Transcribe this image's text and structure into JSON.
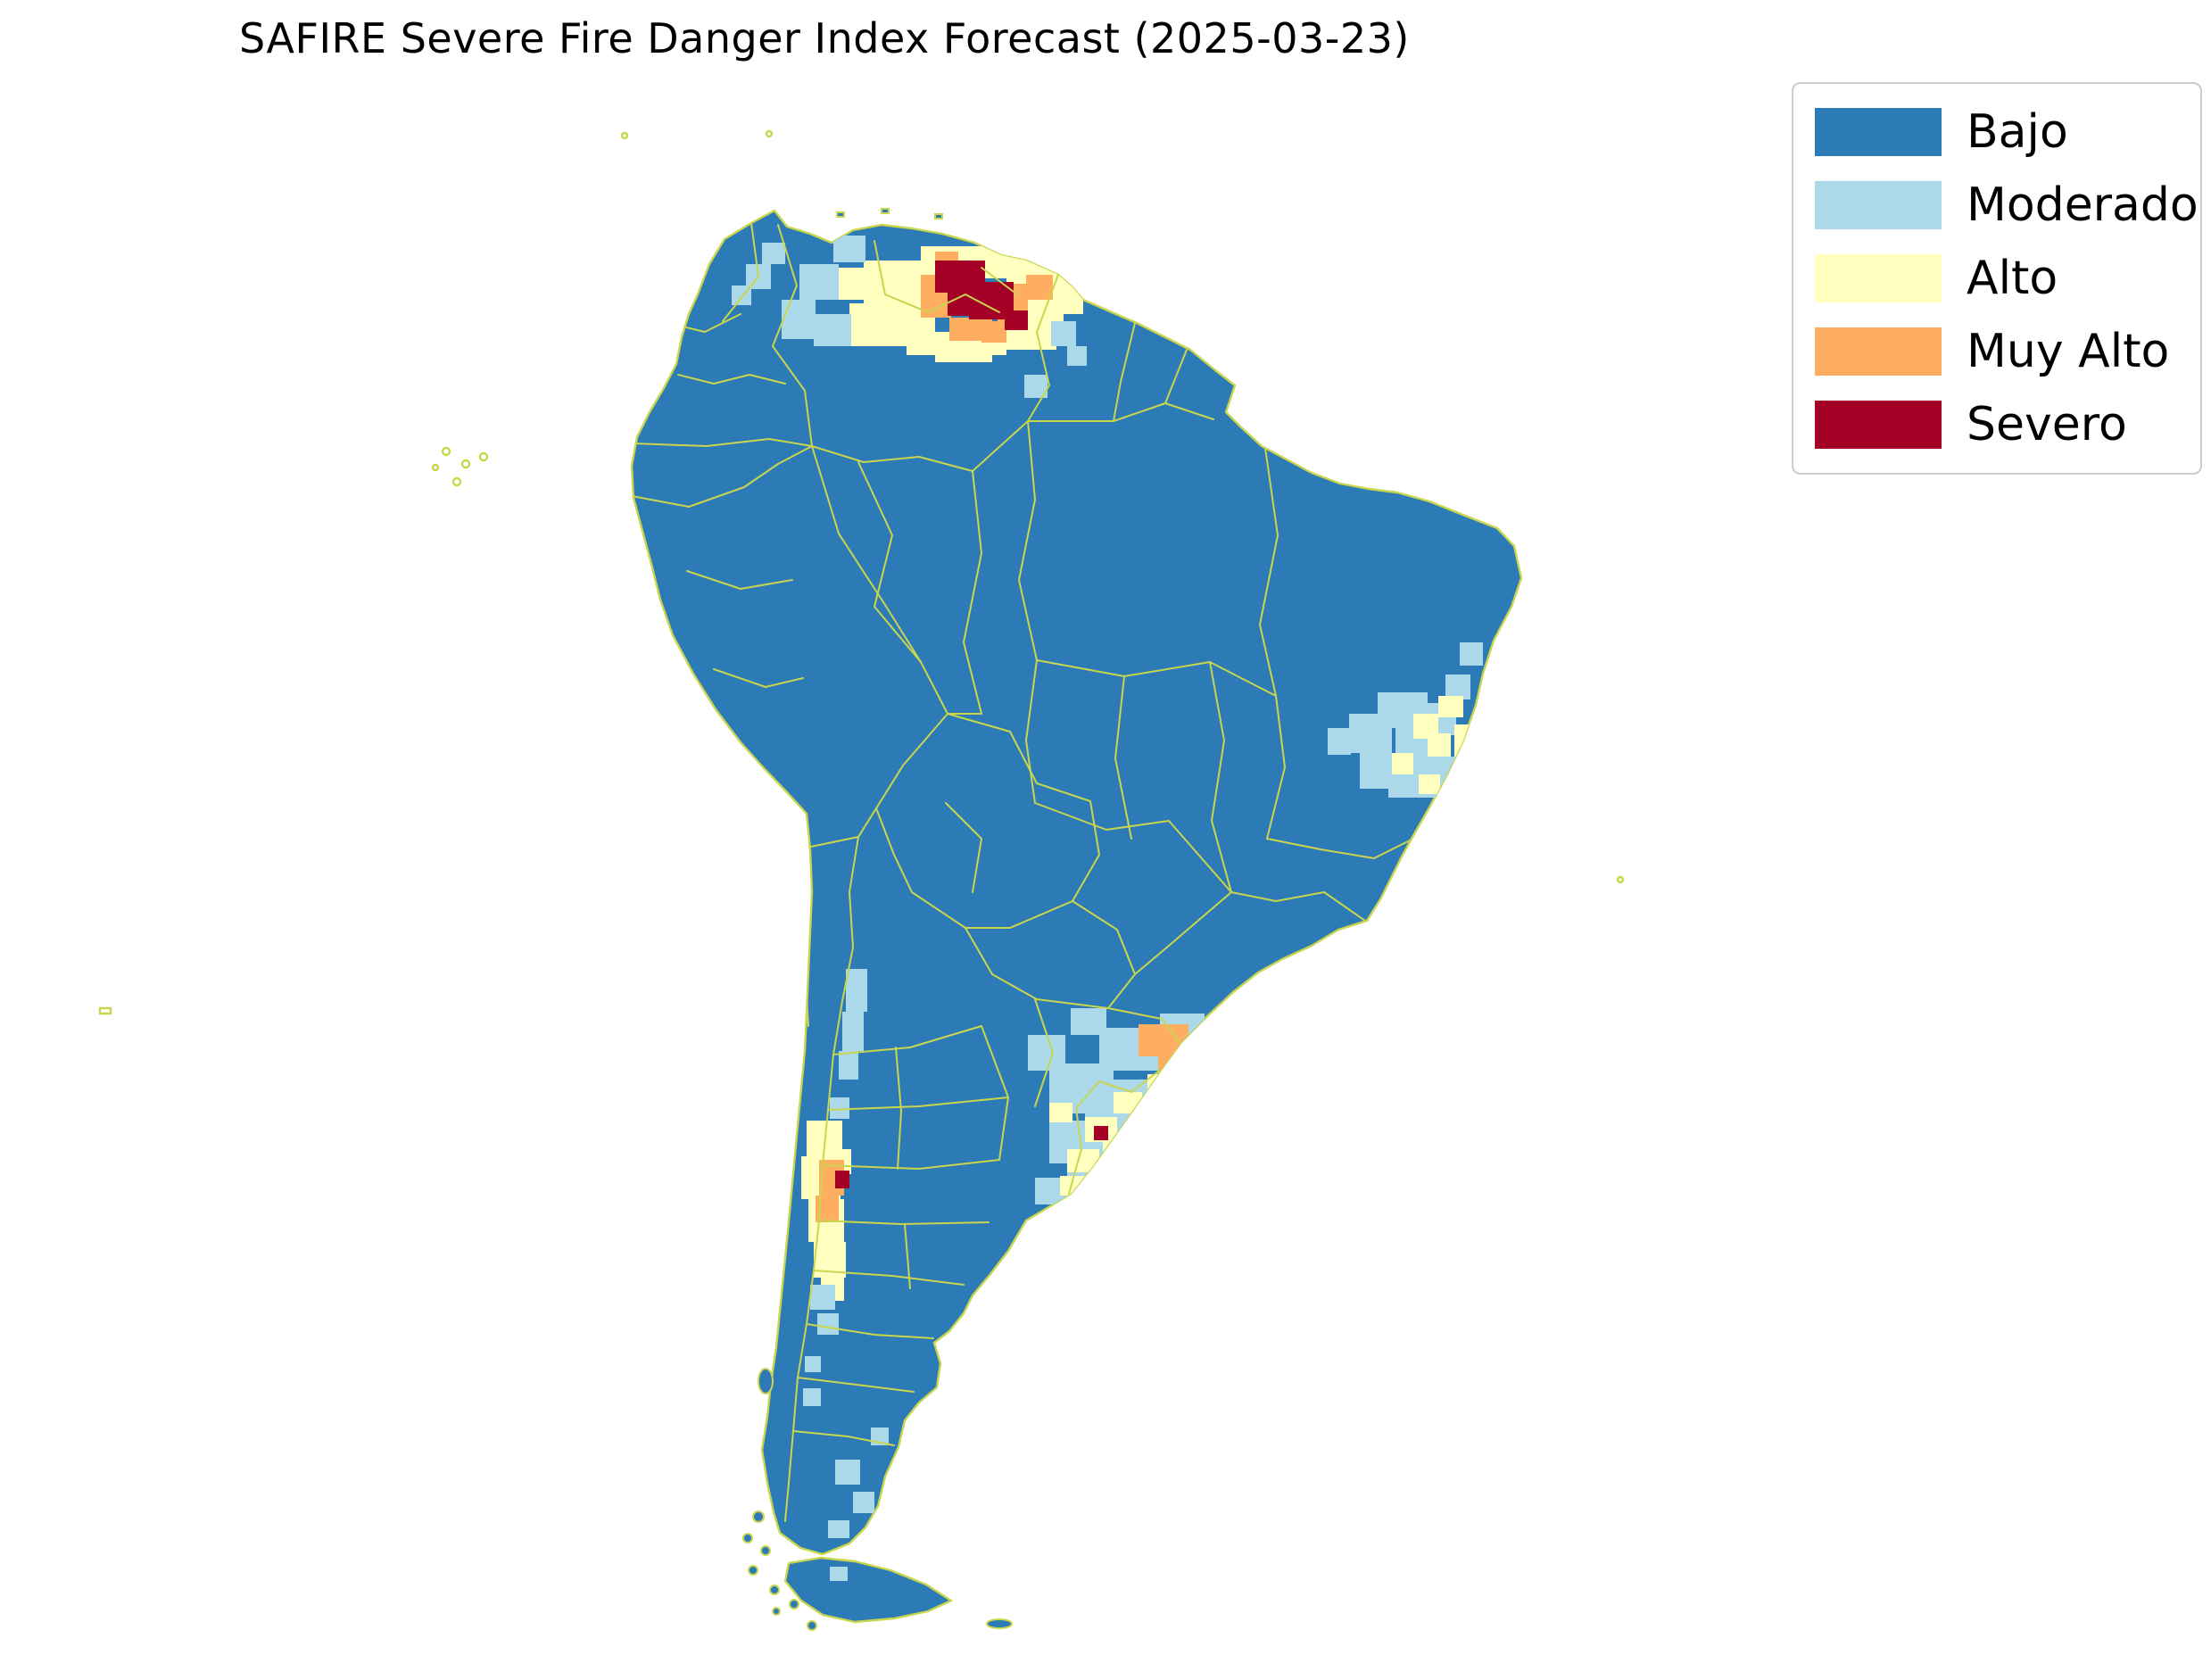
{
  "title": "SAFIRE Severe Fire Danger Index Forecast (2025-03-23)",
  "legend": {
    "items": [
      {
        "label": "Bajo",
        "color": "#2c7bb6"
      },
      {
        "label": "Moderado",
        "color": "#abd9e9"
      },
      {
        "label": "Alto",
        "color": "#ffffbf"
      },
      {
        "label": "Muy Alto",
        "color": "#fdae61"
      },
      {
        "label": "Severo",
        "color": "#a50026"
      }
    ]
  },
  "map": {
    "background_color": "#ffffff",
    "land_color": "#2c7bb6",
    "border_color": "#c9d64d",
    "levels": {
      "Bajo": "#2c7bb6",
      "Moderado": "#abd9e9",
      "Alto": "#ffffbf",
      "Muy Alto": "#fdae61",
      "Severo": "#a50026"
    },
    "hotspots": [
      {
        "name": "north-venezuela-guyana",
        "cells": [
          [
            968,
            292,
            64,
            48,
            "Alto"
          ],
          [
            1032,
            276,
            96,
            36,
            "Alto"
          ],
          [
            1128,
            284,
            64,
            48,
            "Alto"
          ],
          [
            952,
            340,
            48,
            48,
            "Alto"
          ],
          [
            1000,
            324,
            48,
            64,
            "Alto"
          ],
          [
            1144,
            332,
            48,
            48,
            "Alto"
          ],
          [
            1016,
            372,
            112,
            26,
            "Alto"
          ],
          [
            1128,
            364,
            56,
            28,
            "Alto"
          ],
          [
            1186,
            312,
            28,
            40,
            "Alto"
          ],
          [
            938,
            300,
            32,
            36,
            "Alto"
          ],
          [
            1048,
            388,
            64,
            18,
            "Alto"
          ],
          [
            1032,
            308,
            34,
            48,
            "Muy Alto"
          ],
          [
            1118,
            318,
            34,
            46,
            "Muy Alto"
          ],
          [
            1064,
            356,
            48,
            26,
            "Muy Alto"
          ],
          [
            1150,
            308,
            30,
            28,
            "Muy Alto"
          ],
          [
            1048,
            282,
            26,
            26,
            "Muy Alto"
          ],
          [
            1100,
            360,
            28,
            24,
            "Muy Alto"
          ],
          [
            1048,
            292,
            56,
            36,
            "Severo"
          ],
          [
            1086,
            316,
            50,
            42,
            "Severo"
          ],
          [
            1126,
            348,
            26,
            22,
            "Severo"
          ],
          [
            1062,
            328,
            30,
            26,
            "Severo"
          ],
          [
            896,
            296,
            44,
            40,
            "Moderado"
          ],
          [
            876,
            336,
            38,
            44,
            "Moderado"
          ],
          [
            912,
            352,
            42,
            36,
            "Moderado"
          ],
          [
            934,
            264,
            36,
            30,
            "Moderado"
          ],
          [
            1178,
            360,
            28,
            28,
            "Moderado"
          ],
          [
            1148,
            420,
            26,
            26,
            "Moderado"
          ],
          [
            1196,
            388,
            22,
            22,
            "Moderado"
          ]
        ]
      },
      {
        "name": "northwest-colombia",
        "cells": [
          [
            836,
            296,
            28,
            28,
            "Moderado"
          ],
          [
            854,
            272,
            26,
            24,
            "Moderado"
          ],
          [
            820,
            320,
            22,
            22,
            "Moderado"
          ]
        ]
      },
      {
        "name": "east-brazil-bahia",
        "cells": [
          [
            1512,
            800,
            48,
            44,
            "Moderado"
          ],
          [
            1544,
            776,
            56,
            40,
            "Moderado"
          ],
          [
            1564,
            816,
            56,
            48,
            "Moderado"
          ],
          [
            1524,
            844,
            48,
            40,
            "Moderado"
          ],
          [
            1596,
            788,
            36,
            36,
            "Moderado"
          ],
          [
            1556,
            864,
            56,
            30,
            "Moderado"
          ],
          [
            1620,
            756,
            28,
            28,
            "Moderado"
          ],
          [
            1636,
            720,
            26,
            26,
            "Moderado"
          ],
          [
            1600,
            848,
            40,
            32,
            "Moderado"
          ],
          [
            1488,
            816,
            26,
            30,
            "Moderado"
          ],
          [
            1584,
            800,
            28,
            28,
            "Alto"
          ],
          [
            1612,
            780,
            28,
            24,
            "Alto"
          ],
          [
            1600,
            822,
            26,
            26,
            "Alto"
          ],
          [
            1630,
            812,
            26,
            36,
            "Alto"
          ],
          [
            1560,
            844,
            24,
            24,
            "Alto"
          ],
          [
            1590,
            868,
            24,
            22,
            "Alto"
          ]
        ]
      },
      {
        "name": "south-brazil-uruguay",
        "cells": [
          [
            1176,
            1192,
            72,
            56,
            "Moderado"
          ],
          [
            1232,
            1152,
            80,
            48,
            "Moderado"
          ],
          [
            1300,
            1136,
            50,
            40,
            "Moderado"
          ],
          [
            1316,
            1160,
            30,
            36,
            "Moderado"
          ],
          [
            1216,
            1240,
            70,
            50,
            "Moderado"
          ],
          [
            1240,
            1210,
            56,
            36,
            "Moderado"
          ],
          [
            1176,
            1256,
            56,
            48,
            "Moderado"
          ],
          [
            1232,
            1262,
            40,
            40,
            "Moderado"
          ],
          [
            1196,
            1296,
            56,
            36,
            "Moderado"
          ],
          [
            1160,
            1320,
            48,
            30,
            "Moderado"
          ],
          [
            1152,
            1160,
            42,
            40,
            "Moderado"
          ],
          [
            1200,
            1130,
            40,
            30,
            "Moderado"
          ],
          [
            1216,
            1252,
            36,
            28,
            "Alto"
          ],
          [
            1236,
            1276,
            40,
            30,
            "Alto"
          ],
          [
            1196,
            1288,
            36,
            26,
            "Alto"
          ],
          [
            1286,
            1204,
            36,
            26,
            "Alto"
          ],
          [
            1248,
            1224,
            32,
            24,
            "Alto"
          ],
          [
            1176,
            1236,
            26,
            22,
            "Alto"
          ],
          [
            1188,
            1318,
            28,
            22,
            "Alto"
          ],
          [
            1276,
            1148,
            56,
            36,
            "Muy Alto"
          ],
          [
            1298,
            1180,
            34,
            26,
            "Muy Alto"
          ],
          [
            1226,
            1262,
            16,
            16,
            "Severo"
          ]
        ]
      },
      {
        "name": "central-chile-andes",
        "cells": [
          [
            904,
            1256,
            40,
            40,
            "Alto"
          ],
          [
            898,
            1296,
            44,
            48,
            "Alto"
          ],
          [
            906,
            1344,
            40,
            48,
            "Alto"
          ],
          [
            912,
            1392,
            36,
            40,
            "Alto"
          ],
          [
            928,
            1288,
            26,
            28,
            "Alto"
          ],
          [
            920,
            1432,
            26,
            26,
            "Alto"
          ],
          [
            918,
            1300,
            28,
            40,
            "Muy Alto"
          ],
          [
            914,
            1340,
            26,
            30,
            "Muy Alto"
          ],
          [
            936,
            1312,
            16,
            20,
            "Severo"
          ],
          [
            908,
            1440,
            28,
            28,
            "Moderado"
          ],
          [
            916,
            1472,
            24,
            24,
            "Moderado"
          ],
          [
            948,
            1086,
            24,
            48,
            "Moderado"
          ],
          [
            944,
            1134,
            24,
            44,
            "Moderado"
          ],
          [
            940,
            1178,
            22,
            32,
            "Moderado"
          ],
          [
            930,
            1230,
            22,
            24,
            "Moderado"
          ]
        ]
      },
      {
        "name": "patagonia",
        "cells": [
          [
            936,
            1636,
            28,
            28,
            "Moderado"
          ],
          [
            956,
            1672,
            24,
            24,
            "Moderado"
          ],
          [
            928,
            1704,
            24,
            20,
            "Moderado"
          ],
          [
            976,
            1600,
            20,
            20,
            "Moderado"
          ],
          [
            930,
            1756,
            20,
            16,
            "Moderado"
          ],
          [
            900,
            1556,
            20,
            20,
            "Moderado"
          ],
          [
            902,
            1520,
            18,
            18,
            "Moderado"
          ]
        ]
      },
      {
        "name": "pacific-island",
        "cells": [
          [
            712,
            1278,
            14,
            14,
            "Bajo"
          ]
        ]
      }
    ]
  }
}
